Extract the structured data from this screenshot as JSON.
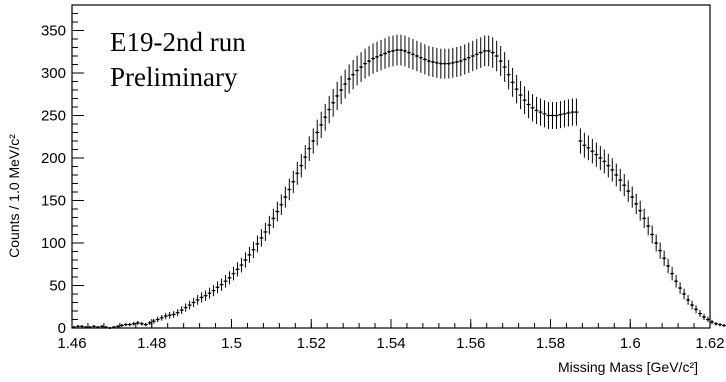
{
  "chart_data": {
    "type": "scatter",
    "style": "error-bar histogram",
    "annotations": [
      "E19-2nd run",
      "Preliminary"
    ],
    "xlabel": "Missing Mass [GeV/c²]",
    "ylabel": "Counts / 1.0 MeV/c²",
    "xlim": [
      1.46,
      1.62
    ],
    "ylim": [
      0,
      380
    ],
    "xticks": [
      "1.46",
      "1.48",
      "1.5",
      "1.52",
      "1.54",
      "1.56",
      "1.58",
      "1.6",
      "1.62"
    ],
    "yticks": [
      "0",
      "50",
      "100",
      "150",
      "200",
      "250",
      "300",
      "350"
    ],
    "bin_width": 0.001,
    "x_start": 1.4605,
    "values": [
      1,
      2,
      2,
      1,
      1,
      2,
      1,
      2,
      1,
      0,
      1,
      2,
      3,
      4,
      4,
      5,
      6,
      5,
      4,
      6,
      8,
      10,
      12,
      14,
      15,
      16,
      18,
      21,
      24,
      27,
      30,
      33,
      36,
      38,
      41,
      44,
      48,
      51,
      55,
      59,
      64,
      69,
      74,
      80,
      86,
      92,
      99,
      106,
      113,
      121,
      129,
      137,
      145,
      154,
      163,
      172,
      182,
      191,
      201,
      211,
      220,
      230,
      239,
      248,
      257,
      265,
      273,
      280,
      287,
      293,
      298,
      303,
      307,
      311,
      314,
      317,
      319,
      321,
      323,
      325,
      326,
      327,
      327,
      326,
      324,
      322,
      320,
      318,
      316,
      314,
      313,
      312,
      311,
      311,
      311,
      312,
      313,
      314,
      316,
      318,
      320,
      322,
      324,
      326,
      326,
      324,
      320,
      314,
      307,
      298,
      289,
      281,
      274,
      268,
      263,
      259,
      256,
      254,
      252,
      250,
      250,
      250,
      251,
      252,
      253,
      254,
      254,
      220,
      215,
      212,
      208,
      204,
      200,
      196,
      191,
      186,
      180,
      174,
      168,
      161,
      154,
      146,
      138,
      129,
      120,
      110,
      100,
      91,
      82,
      73,
      64,
      55,
      47,
      40,
      33,
      27,
      22,
      17,
      13,
      10,
      7,
      5,
      4,
      3,
      2,
      2,
      1,
      1,
      1,
      1,
      1,
      0
    ]
  }
}
